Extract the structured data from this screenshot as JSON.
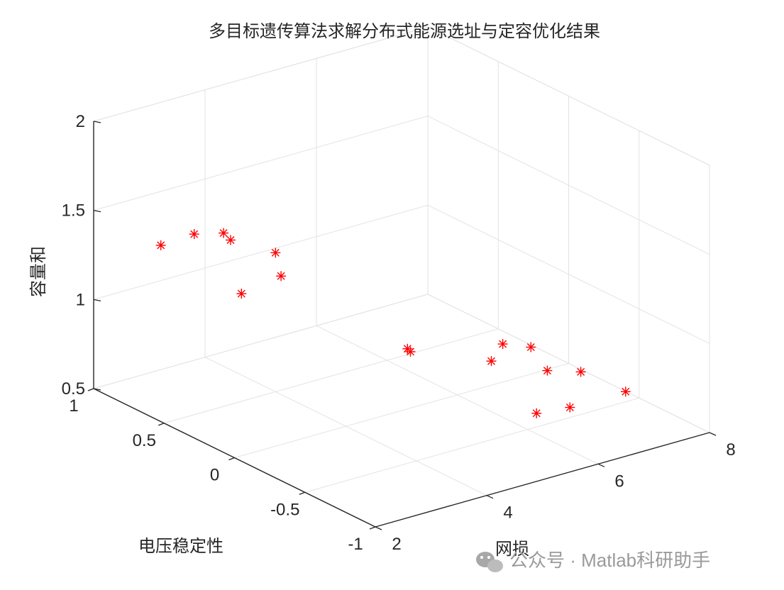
{
  "chart_data": {
    "type": "scatter",
    "title": "多目标遗传算法求解分布式能源选址与定容优化结果",
    "xlabel": "网损",
    "ylabel": "电压稳定性",
    "zlabel": "容量和",
    "xlim": [
      2,
      8
    ],
    "ylim": [
      -1,
      1
    ],
    "zlim": [
      0.5,
      2
    ],
    "xticks": [
      "2",
      "4",
      "6",
      "8"
    ],
    "yticks": [
      "-1",
      "-0.5",
      "0",
      "0.5",
      "1"
    ],
    "zticks": [
      "0.5",
      "1",
      "1.5",
      "2"
    ],
    "grid": true,
    "marker": "*",
    "marker_color": "#ff0000",
    "points": [
      {
        "x": 2.7,
        "y": 0.8,
        "z": 1.32
      },
      {
        "x": 3.3,
        "y": 0.8,
        "z": 1.33
      },
      {
        "x": 3.7,
        "y": 0.7,
        "z": 1.3
      },
      {
        "x": 3.7,
        "y": 0.75,
        "z": 1.32
      },
      {
        "x": 4.0,
        "y": 0.5,
        "z": 1.28
      },
      {
        "x": 4.1,
        "y": 0.5,
        "z": 1.14
      },
      {
        "x": 4.4,
        "y": 0.9,
        "z": 0.86
      },
      {
        "x": 4.4,
        "y": -0.3,
        "z": 1.0
      },
      {
        "x": 4.6,
        "y": -0.2,
        "z": 0.96
      },
      {
        "x": 5.3,
        "y": -0.8,
        "z": 1.14
      },
      {
        "x": 5.3,
        "y": -0.6,
        "z": 1.08
      },
      {
        "x": 5.6,
        "y": -0.4,
        "z": 0.88
      },
      {
        "x": 5.4,
        "y": -0.8,
        "z": 0.76
      },
      {
        "x": 6.1,
        "y": -0.6,
        "z": 0.86
      },
      {
        "x": 6.0,
        "y": -0.8,
        "z": 0.74
      },
      {
        "x": 6.7,
        "y": -0.6,
        "z": 0.8
      },
      {
        "x": 7.0,
        "y": -0.8,
        "z": 0.74
      }
    ]
  },
  "watermark": {
    "text": "公众号 · Matlab科研助手",
    "icon": "wechat-icon"
  }
}
